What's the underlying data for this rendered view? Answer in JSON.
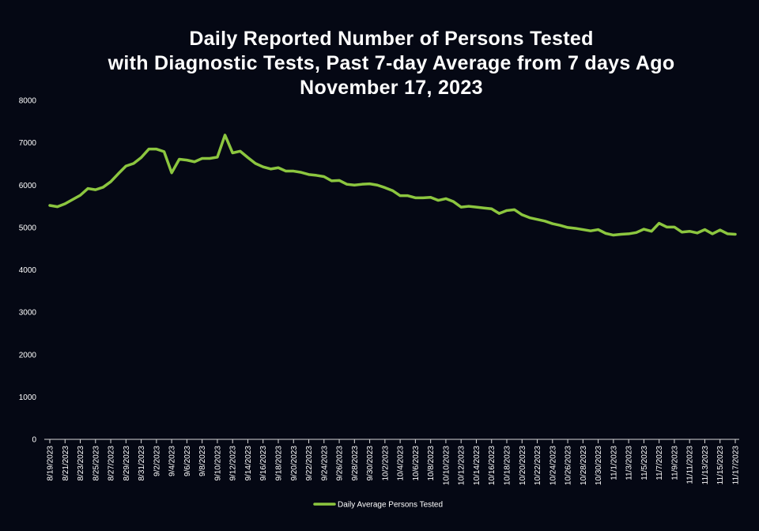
{
  "chart_data": {
    "type": "line",
    "title_lines": [
      "Daily Reported Number of Persons Tested",
      "with Diagnostic Tests, Past 7-day Average from 7 days Ago",
      "November 17, 2023"
    ],
    "xlabel": "",
    "ylabel": "",
    "ylim": [
      0,
      8000
    ],
    "yticks": [
      0,
      1000,
      2000,
      3000,
      4000,
      5000,
      6000,
      7000,
      8000
    ],
    "xtick_labels": [
      "8/19/2023",
      "8/21/2023",
      "8/23/2023",
      "8/25/2023",
      "8/27/2023",
      "8/29/2023",
      "8/31/2023",
      "9/2/2023",
      "9/4/2023",
      "9/6/2023",
      "9/8/2023",
      "9/10/2023",
      "9/12/2023",
      "9/14/2023",
      "9/16/2023",
      "9/18/2023",
      "9/20/2023",
      "9/22/2023",
      "9/24/2023",
      "9/26/2023",
      "9/28/2023",
      "9/30/2023",
      "10/2/2023",
      "10/4/2023",
      "10/6/2023",
      "10/8/2023",
      "10/10/2023",
      "10/12/2023",
      "10/14/2023",
      "10/16/2023",
      "10/18/2023",
      "10/20/2023",
      "10/22/2023",
      "10/24/2023",
      "10/26/2023",
      "10/28/2023",
      "10/30/2023",
      "11/1/2023",
      "11/3/2023",
      "11/5/2023",
      "11/7/2023",
      "11/9/2023",
      "11/11/2023",
      "11/13/2023",
      "11/15/2023",
      "11/17/2023"
    ],
    "x": [
      "8/19/2023",
      "8/20/2023",
      "8/21/2023",
      "8/22/2023",
      "8/23/2023",
      "8/24/2023",
      "8/25/2023",
      "8/26/2023",
      "8/27/2023",
      "8/28/2023",
      "8/29/2023",
      "8/30/2023",
      "8/31/2023",
      "9/1/2023",
      "9/2/2023",
      "9/3/2023",
      "9/4/2023",
      "9/5/2023",
      "9/6/2023",
      "9/7/2023",
      "9/8/2023",
      "9/9/2023",
      "9/10/2023",
      "9/11/2023",
      "9/12/2023",
      "9/13/2023",
      "9/14/2023",
      "9/15/2023",
      "9/16/2023",
      "9/17/2023",
      "9/18/2023",
      "9/19/2023",
      "9/20/2023",
      "9/21/2023",
      "9/22/2023",
      "9/23/2023",
      "9/24/2023",
      "9/25/2023",
      "9/26/2023",
      "9/27/2023",
      "9/28/2023",
      "9/29/2023",
      "9/30/2023",
      "10/1/2023",
      "10/2/2023",
      "10/3/2023",
      "10/4/2023",
      "10/5/2023",
      "10/6/2023",
      "10/7/2023",
      "10/8/2023",
      "10/9/2023",
      "10/10/2023",
      "10/11/2023",
      "10/12/2023",
      "10/13/2023",
      "10/14/2023",
      "10/15/2023",
      "10/16/2023",
      "10/17/2023",
      "10/18/2023",
      "10/19/2023",
      "10/20/2023",
      "10/21/2023",
      "10/22/2023",
      "10/23/2023",
      "10/24/2023",
      "10/25/2023",
      "10/26/2023",
      "10/27/2023",
      "10/28/2023",
      "10/29/2023",
      "10/30/2023",
      "10/31/2023",
      "11/1/2023",
      "11/2/2023",
      "11/3/2023",
      "11/4/2023",
      "11/5/2023",
      "11/6/2023",
      "11/7/2023",
      "11/8/2023",
      "11/9/2023",
      "11/10/2023",
      "11/11/2023",
      "11/12/2023",
      "11/13/2023",
      "11/14/2023",
      "11/15/2023",
      "11/16/2023",
      "11/17/2023"
    ],
    "series": [
      {
        "name": "Daily Average Persons Tested",
        "color": "#8cc63f",
        "values": [
          5520,
          5490,
          5560,
          5660,
          5760,
          5920,
          5890,
          5950,
          6080,
          6270,
          6450,
          6510,
          6650,
          6850,
          6850,
          6790,
          6290,
          6610,
          6590,
          6550,
          6630,
          6630,
          6660,
          7180,
          6760,
          6800,
          6650,
          6510,
          6430,
          6380,
          6410,
          6330,
          6330,
          6300,
          6250,
          6230,
          6200,
          6100,
          6110,
          6020,
          6000,
          6020,
          6030,
          6000,
          5940,
          5870,
          5750,
          5750,
          5700,
          5700,
          5710,
          5640,
          5680,
          5610,
          5480,
          5500,
          5480,
          5460,
          5440,
          5330,
          5400,
          5420,
          5300,
          5230,
          5190,
          5150,
          5090,
          5050,
          5000,
          4980,
          4950,
          4920,
          4950,
          4860,
          4820,
          4840,
          4850,
          4880,
          4960,
          4910,
          5100,
          5010,
          5010,
          4890,
          4910,
          4870,
          4950,
          4850,
          4940,
          4850,
          4840
        ]
      }
    ],
    "legend_position": "bottom-center",
    "grid": false
  }
}
